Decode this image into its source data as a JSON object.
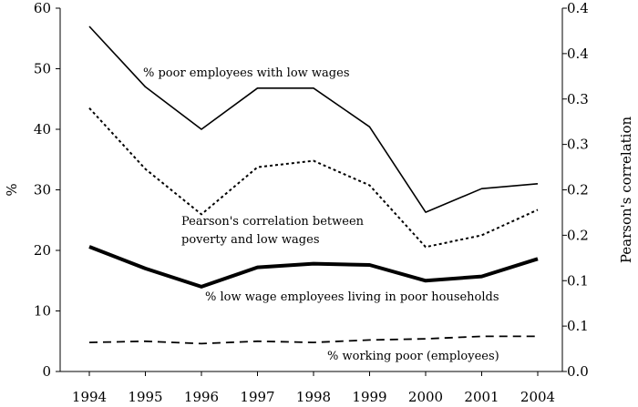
{
  "chart_data": {
    "type": "line",
    "categories": [
      "1994",
      "1995",
      "1996",
      "1997",
      "1998",
      "1999",
      "2000",
      "2001",
      "2004"
    ],
    "y_left": {
      "label": "%",
      "ticks": [
        "0",
        "10",
        "20",
        "30",
        "40",
        "50",
        "60"
      ],
      "range": [
        0,
        60
      ]
    },
    "y_right": {
      "label": "Pearson's correlation",
      "ticks": [
        "0.0",
        "0.1",
        "0.1",
        "0.2",
        "0.2",
        "0.3",
        "0.3",
        "0.4",
        "0.4"
      ],
      "range": [
        0,
        0.4
      ]
    },
    "series": [
      {
        "key": "poor_low_wages",
        "axis": "left",
        "style": "solid",
        "values": [
          57.0,
          47.0,
          40.0,
          46.8,
          46.8,
          40.4,
          26.3,
          30.2,
          31.0
        ]
      },
      {
        "key": "pearson",
        "axis": "right",
        "style": "dotted",
        "values": [
          0.29,
          0.223,
          0.173,
          0.225,
          0.232,
          0.205,
          0.137,
          0.15,
          0.178
        ]
      },
      {
        "key": "low_wage_poor_households",
        "axis": "left",
        "style": "thick",
        "values": [
          20.6,
          17.0,
          14.0,
          17.2,
          17.8,
          17.6,
          15.0,
          15.7,
          18.6
        ]
      },
      {
        "key": "working_poor",
        "axis": "left",
        "style": "dashed",
        "values": [
          4.8,
          5.0,
          4.6,
          5.0,
          4.8,
          5.2,
          5.4,
          5.8,
          5.8
        ]
      }
    ],
    "annotations": [
      {
        "series": "poor_low_wages",
        "lines": [
          "% poor employees with low wages"
        ]
      },
      {
        "series": "pearson",
        "lines": [
          "Pearson's correlation between",
          "poverty and low wages"
        ]
      },
      {
        "series": "low_wage_poor_households",
        "lines": [
          "% low wage employees living in poor households"
        ]
      },
      {
        "series": "working_poor",
        "lines": [
          "% working poor (employees)"
        ]
      }
    ],
    "grid": false
  }
}
